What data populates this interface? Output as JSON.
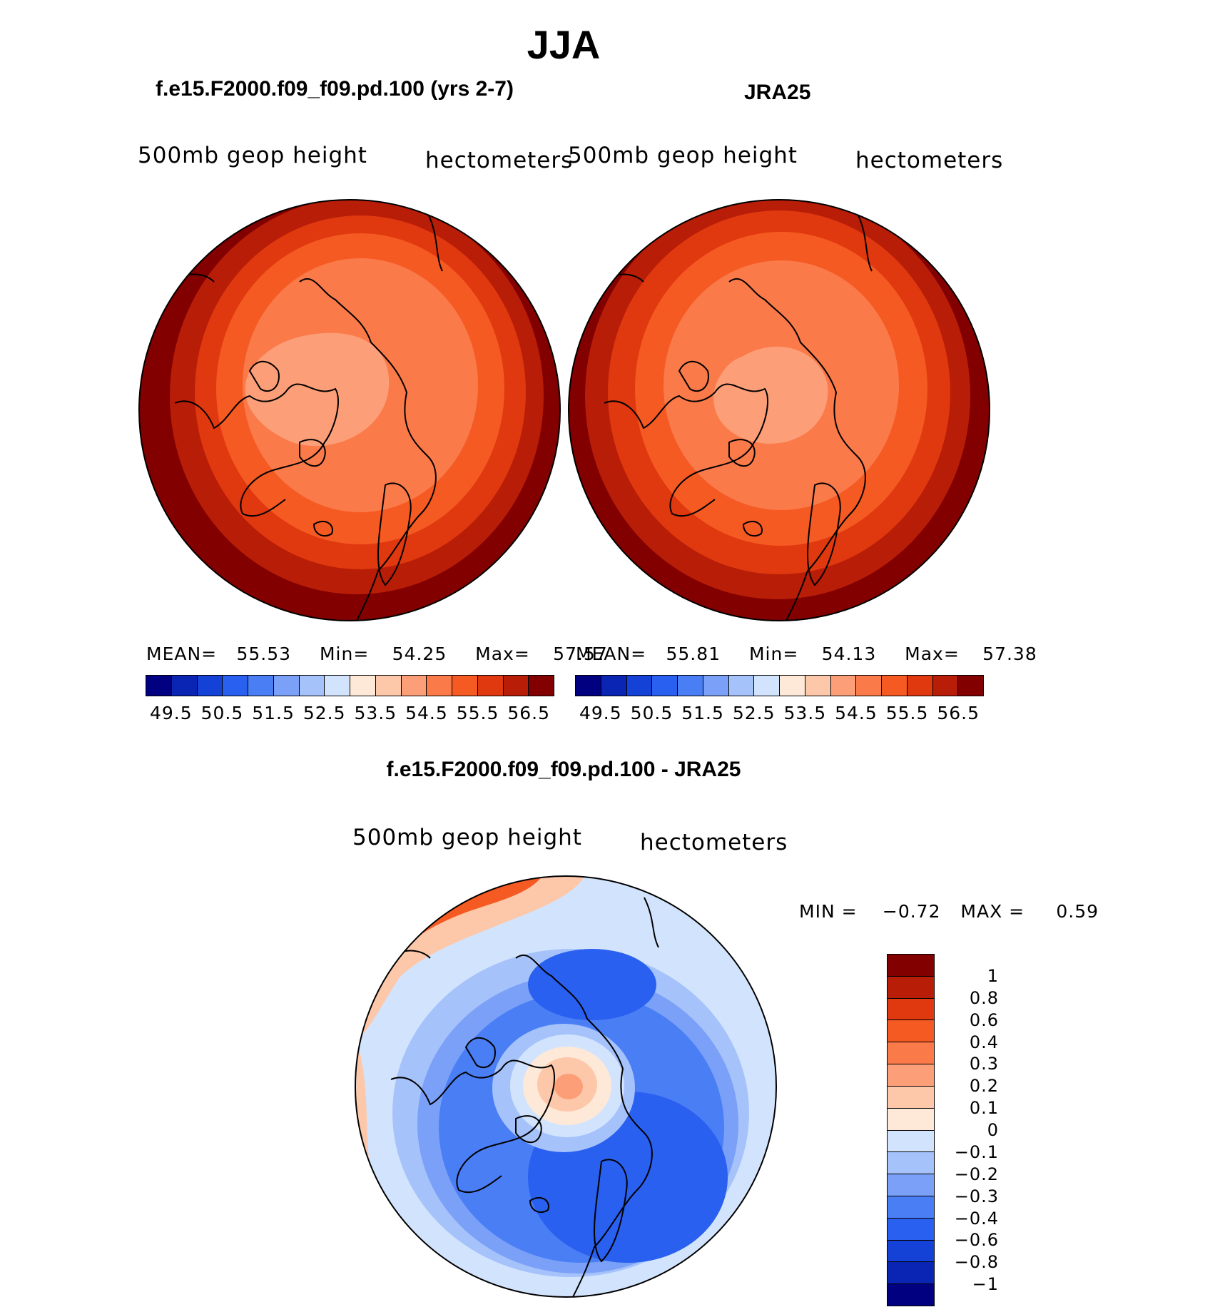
{
  "title": "JJA",
  "panels": [
    {
      "title": "f.e15.F2000.f09_f09.pd.100 (yrs 2-7)",
      "variable": "500mb geop height",
      "units": "hectometers",
      "stats": {
        "mean_label": "MEAN=",
        "mean": "55.53",
        "min_label": "Min=",
        "min": "54.25",
        "max_label": "Max=",
        "max": "57.57"
      }
    },
    {
      "title": "JRA25",
      "variable": "500mb geop height",
      "units": "hectometers",
      "stats": {
        "mean_label": "MEAN=",
        "mean": "55.81",
        "min_label": "Min=",
        "min": "54.13",
        "max_label": "Max=",
        "max": "57.38"
      }
    },
    {
      "title": "f.e15.F2000.f09_f09.pd.100 - JRA25",
      "variable": "500mb geop height",
      "units": "hectometers",
      "stats": {
        "min_label": "MIN =",
        "min": "−0.72",
        "max_label": "MAX =",
        "max": "0.59"
      }
    }
  ],
  "colorbar_abs": {
    "labels": [
      "49.5",
      "50.5",
      "51.5",
      "52.5",
      "53.5",
      "54.5",
      "55.5",
      "56.5"
    ],
    "colors": [
      "#000080",
      "#0a24b4",
      "#1441d6",
      "#2a60f0",
      "#4a7ef5",
      "#7aa0f8",
      "#a6c2fb",
      "#d2e4fd",
      "#fee8d8",
      "#fdc7a9",
      "#fc9f78",
      "#fb7a4a",
      "#f55a22",
      "#e0380f",
      "#b81d08",
      "#820000"
    ]
  },
  "colorbar_diff": {
    "labels": [
      "1",
      "0.8",
      "0.6",
      "0.4",
      "0.3",
      "0.2",
      "0.1",
      "0",
      "−0.1",
      "−0.2",
      "−0.3",
      "−0.4",
      "−0.6",
      "−0.8",
      "−1"
    ],
    "colors": [
      "#820000",
      "#b81d08",
      "#e0380f",
      "#f55a22",
      "#fb7a4a",
      "#fc9f78",
      "#fdc7a9",
      "#fee8d8",
      "#d2e4fd",
      "#a6c2fb",
      "#7aa0f8",
      "#4a7ef5",
      "#2a60f0",
      "#1441d6",
      "#0a24b4",
      "#000080"
    ]
  }
}
